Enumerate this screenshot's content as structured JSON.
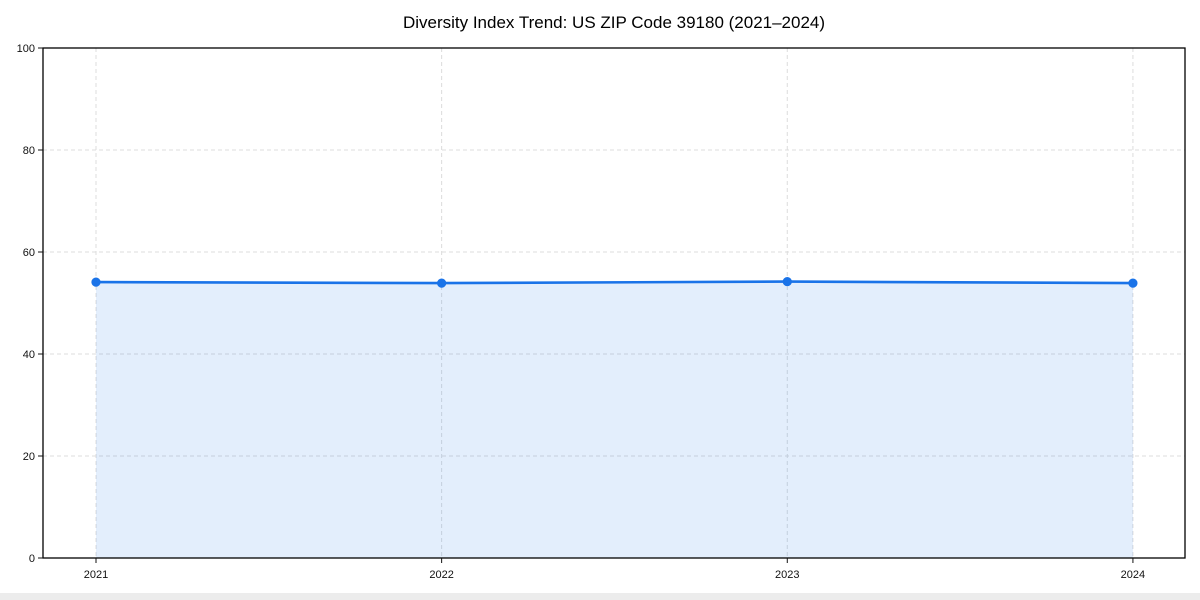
{
  "page": {
    "background_color": "#ffffff",
    "footer_strip_color": "#ececec"
  },
  "chart_data": {
    "type": "line",
    "title": "Diversity Index Trend: US ZIP Code 39180 (2021–2024)",
    "x": [
      2021,
      2022,
      2023,
      2024
    ],
    "xtick_labels": [
      "2021",
      "2022",
      "2023",
      "2024"
    ],
    "series": [
      {
        "name": "Diversity Index",
        "values": [
          54.1,
          53.9,
          54.2,
          53.9
        ]
      }
    ],
    "xlabel": "",
    "ylabel": "",
    "ylim": [
      0,
      100
    ],
    "yticks": [
      0,
      20,
      40,
      60,
      80,
      100
    ],
    "grid": "dashed light-gray, horizontal and vertical",
    "legend_position": "none",
    "line_color": "#1a73e8",
    "fill_color": "rgba(26,115,232,0.12)",
    "marker": "circle",
    "area_fill": true,
    "plot_border_color": "#000000"
  }
}
